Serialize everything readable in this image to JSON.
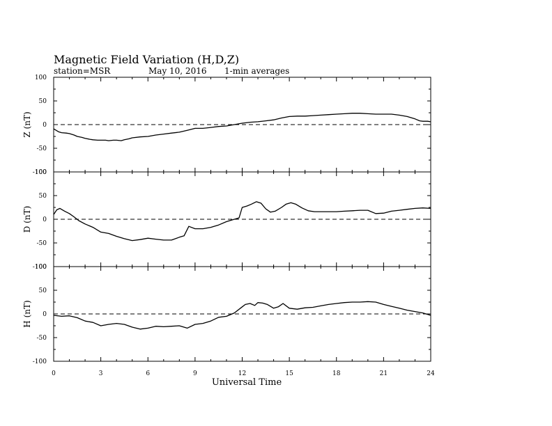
{
  "chart_data": {
    "type": "line",
    "title": "Magnetic Field Variation (H,D,Z)",
    "station": "station=MSR",
    "date": "May 10, 2016",
    "averaging": "1-min averages",
    "xlabel": "Universal Time",
    "xlim": [
      0,
      24
    ],
    "x_ticks": [
      "0",
      "3",
      "6",
      "9",
      "12",
      "15",
      "18",
      "21",
      "24"
    ],
    "ylim": [
      -100,
      100
    ],
    "y_ticks": [
      "100",
      "50",
      "0",
      "-50",
      "-100"
    ],
    "zero_line": "dashed",
    "line_color": "#000000",
    "panels": [
      {
        "name": "Z",
        "ylabel": "Z (nT)",
        "x": [
          0,
          0.3,
          0.5,
          0.8,
          1,
          1.3,
          1.5,
          1.8,
          2,
          2.3,
          2.5,
          2.8,
          3,
          3.3,
          3.5,
          3.8,
          4,
          4.3,
          4.5,
          4.8,
          5,
          5.5,
          6,
          6.5,
          7,
          7.5,
          8,
          8.5,
          9,
          9.5,
          10,
          10.5,
          11,
          11.5,
          12,
          12.5,
          13,
          13.5,
          14,
          14.5,
          15,
          15.5,
          16,
          16.5,
          17,
          17.5,
          18,
          18.5,
          19,
          19.5,
          20,
          20.5,
          21,
          21.5,
          22,
          22.5,
          23,
          23.3,
          23.5,
          23.8,
          24
        ],
        "y": [
          -9,
          -15,
          -17,
          -18,
          -19,
          -22,
          -25,
          -27,
          -29,
          -31,
          -32,
          -33,
          -33,
          -33,
          -34,
          -33,
          -33,
          -34,
          -32,
          -30,
          -28,
          -26,
          -25,
          -22,
          -20,
          -18,
          -16,
          -12,
          -8,
          -8,
          -6,
          -4,
          -3,
          0,
          3,
          5,
          6,
          8,
          10,
          14,
          17,
          18,
          18,
          19,
          20,
          21,
          22,
          23,
          24,
          24,
          23,
          22,
          22,
          22,
          20,
          17,
          12,
          8,
          7,
          7,
          6
        ]
      },
      {
        "name": "D",
        "ylabel": "D (nT)",
        "x": [
          0,
          0.2,
          0.4,
          0.7,
          1,
          1.3,
          1.6,
          2,
          2.5,
          3,
          3.5,
          4,
          4.5,
          5,
          5.5,
          6,
          6.5,
          7,
          7.5,
          8,
          8.3,
          8.6,
          9,
          9.5,
          10,
          10.5,
          11,
          11.5,
          11.8,
          12,
          12.3,
          12.6,
          12.9,
          13.2,
          13.5,
          13.8,
          14.1,
          14.5,
          14.8,
          15.1,
          15.4,
          15.8,
          16.2,
          16.6,
          17,
          17.5,
          18,
          18.5,
          19,
          19.5,
          20,
          20.5,
          21,
          21.5,
          22,
          22.5,
          23,
          23.5,
          24
        ],
        "y": [
          10,
          20,
          23,
          17,
          12,
          5,
          -3,
          -10,
          -17,
          -27,
          -30,
          -36,
          -41,
          -45,
          -43,
          -40,
          -42,
          -44,
          -44,
          -38,
          -35,
          -15,
          -20,
          -20,
          -17,
          -12,
          -5,
          0,
          3,
          25,
          28,
          32,
          37,
          34,
          22,
          15,
          17,
          25,
          32,
          35,
          32,
          24,
          18,
          16,
          16,
          16,
          16,
          17,
          18,
          19,
          19,
          12,
          13,
          17,
          19,
          21,
          23,
          24,
          23
        ]
      },
      {
        "name": "H",
        "ylabel": "H (nT)",
        "x": [
          0,
          0.5,
          1,
          1.5,
          2,
          2.5,
          3,
          3.5,
          4,
          4.5,
          5,
          5.5,
          6,
          6.5,
          7,
          7.5,
          8,
          8.5,
          9,
          9.5,
          10,
          10.5,
          11,
          11.5,
          12,
          12.2,
          12.5,
          12.8,
          13,
          13.3,
          13.6,
          14,
          14.3,
          14.6,
          15,
          15.5,
          16,
          16.5,
          17,
          17.5,
          18,
          18.5,
          19,
          19.5,
          20,
          20.5,
          21,
          21.5,
          22,
          22.5,
          23,
          23.5,
          24
        ],
        "y": [
          -3,
          -5,
          -4,
          -8,
          -15,
          -18,
          -25,
          -22,
          -20,
          -22,
          -28,
          -32,
          -30,
          -26,
          -27,
          -26,
          -25,
          -30,
          -22,
          -20,
          -15,
          -7,
          -5,
          2,
          15,
          20,
          22,
          18,
          24,
          23,
          20,
          12,
          15,
          22,
          12,
          10,
          13,
          14,
          17,
          20,
          22,
          24,
          25,
          25,
          26,
          25,
          20,
          16,
          12,
          8,
          5,
          2,
          -3
        ]
      }
    ]
  }
}
